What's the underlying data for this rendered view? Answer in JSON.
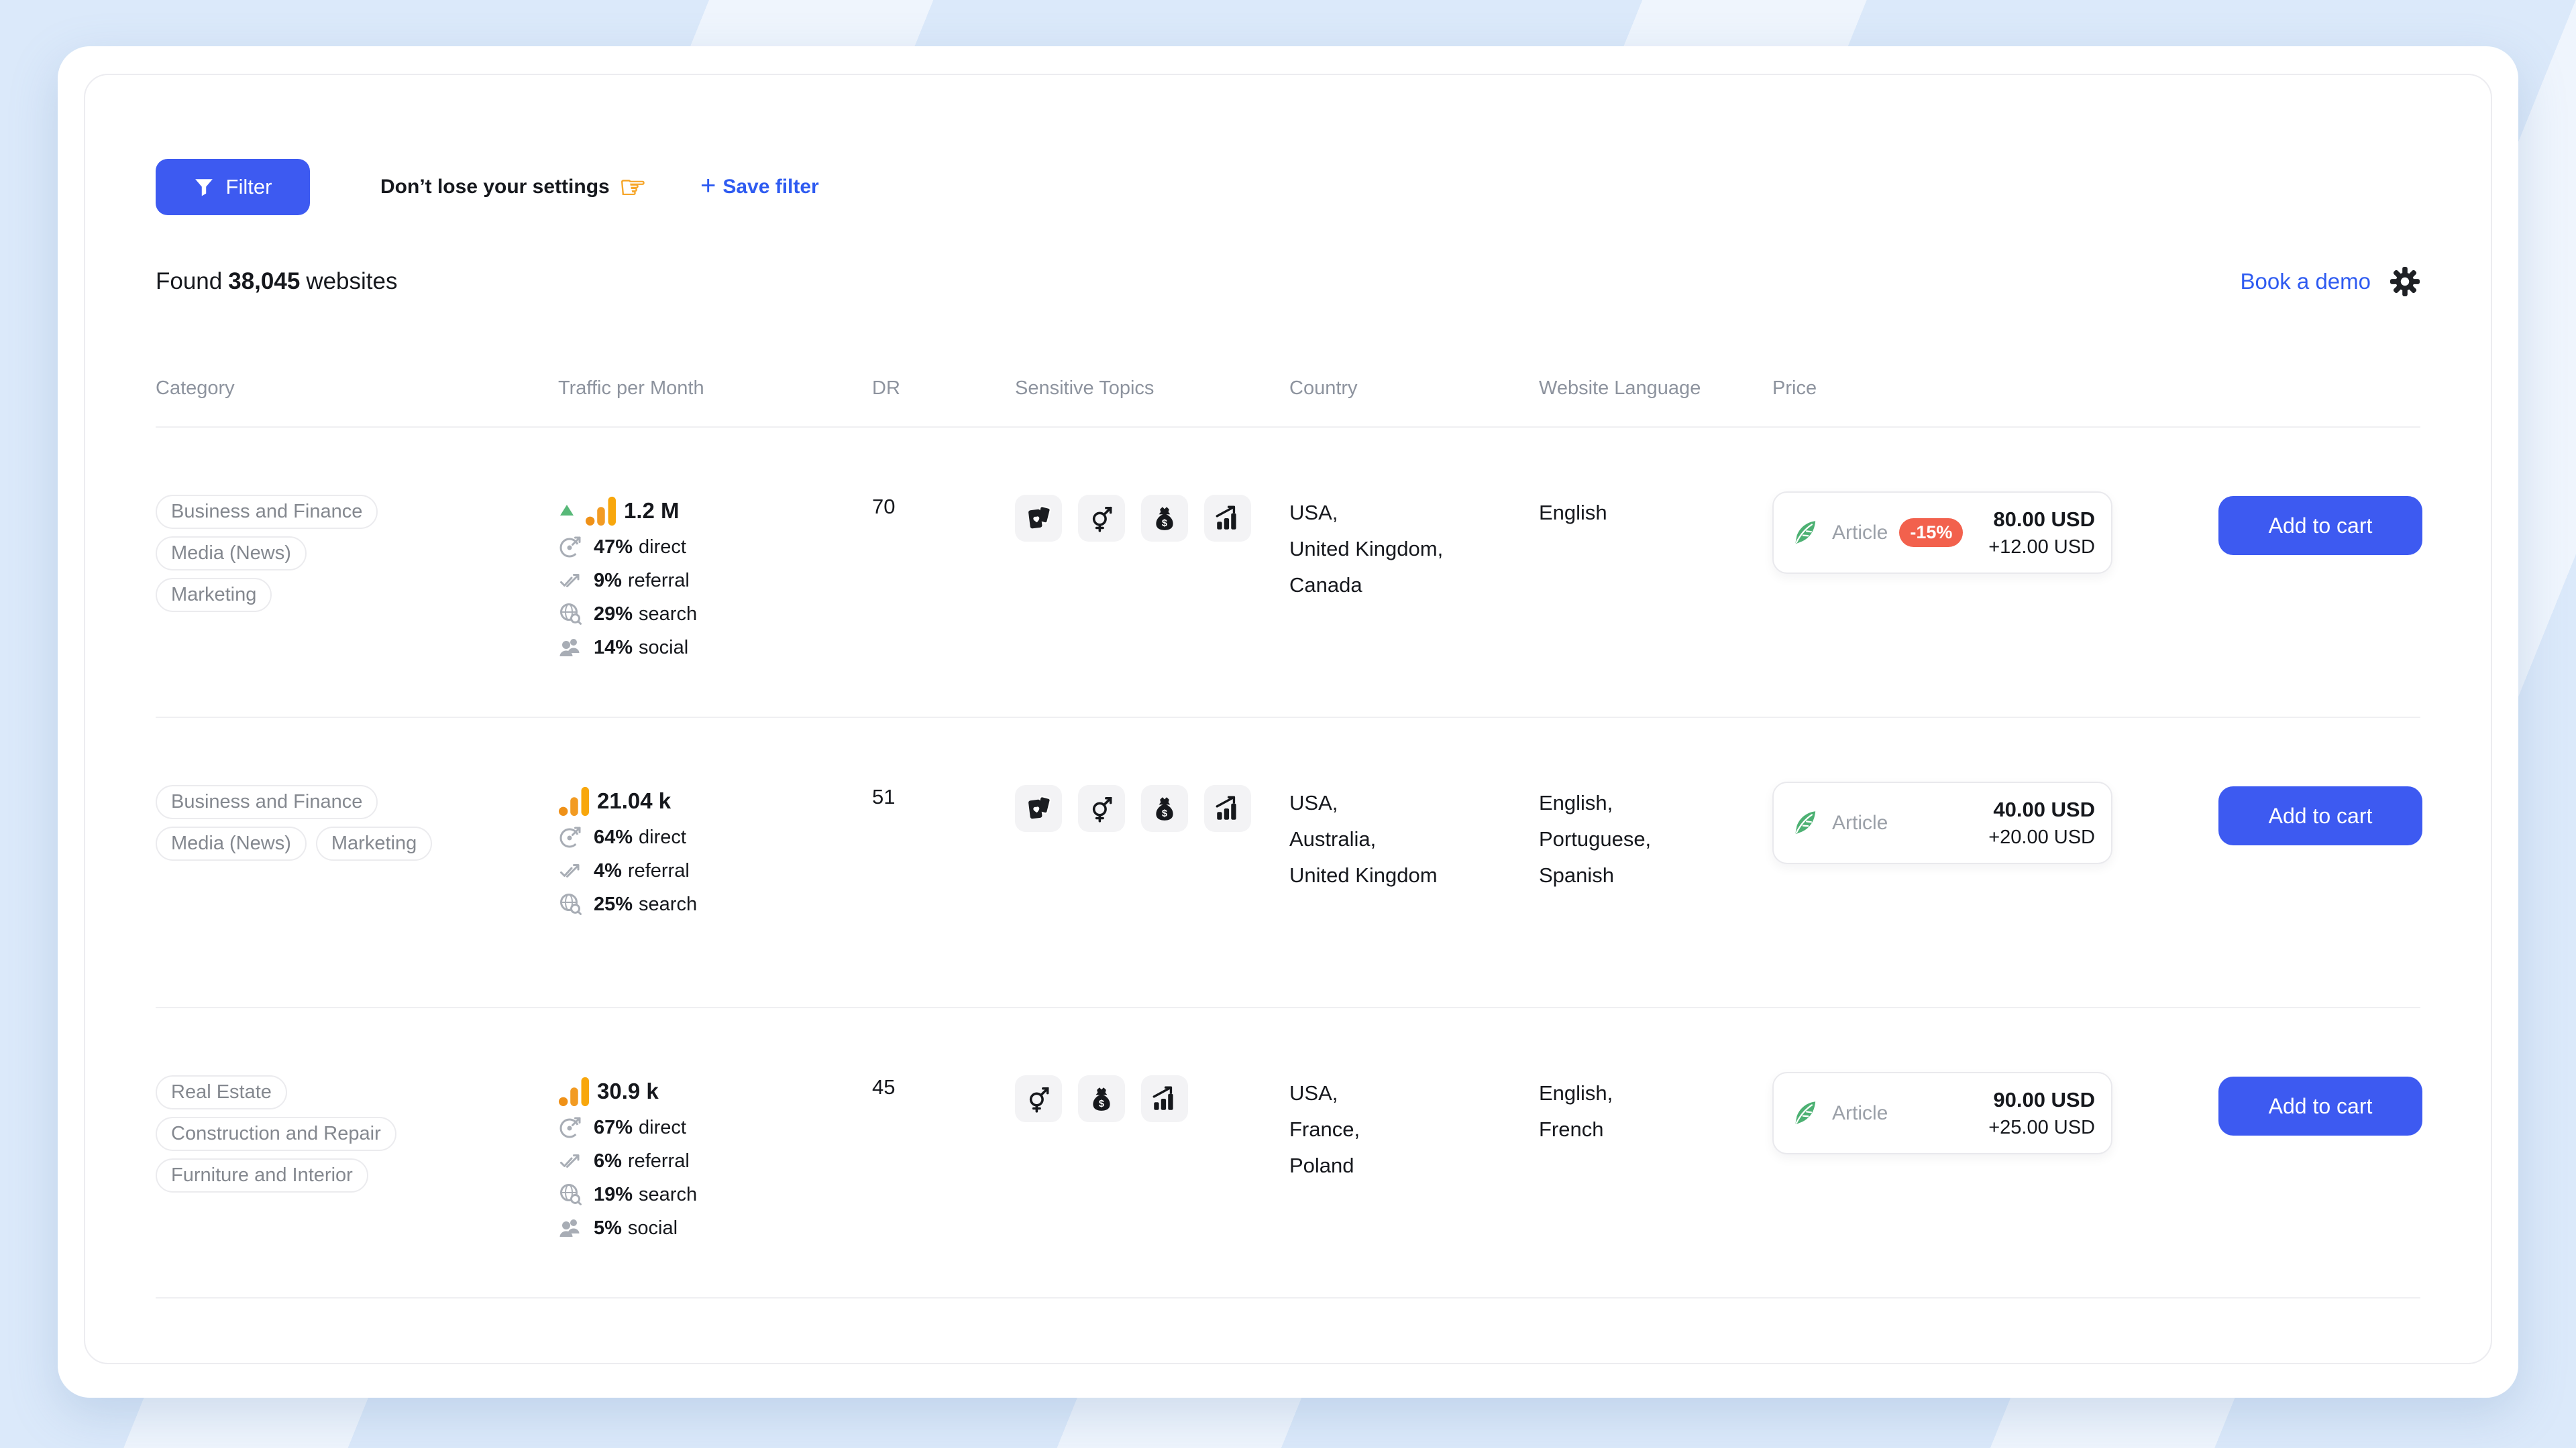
{
  "toolbar": {
    "filter_label": "Filter",
    "filter_icon": "funnel-icon",
    "hint_text": "Don’t lose your settings",
    "hint_icon": "pointing-hand-icon",
    "save_filter_label": "Save filter",
    "save_filter_icon": "plus-icon"
  },
  "summary": {
    "prefix": "Found",
    "count": "38,045",
    "suffix": "websites"
  },
  "header_right": {
    "book_demo": "Book a demo",
    "settings_icon": "gear-icon"
  },
  "table": {
    "columns": [
      "Category",
      "Traffic per Month",
      "DR",
      "Sensitive Topics",
      "Country",
      "Website Language",
      "Price"
    ]
  },
  "colors": {
    "accent_blue": "#3d5af1",
    "link_blue": "#2e5bf1",
    "discount_red": "#f2614d",
    "feather_green": "#4db173",
    "analytics_orange": "#f5a21b",
    "trend_green": "#57b878",
    "background_blue": "#dbe9fa"
  },
  "rows": [
    {
      "category_lines": [
        [
          "Business and Finance"
        ],
        [
          "Media (News)"
        ],
        [
          "Marketing"
        ]
      ],
      "traffic": {
        "total": "1.2 M",
        "trend_up": true,
        "total_icon": "analytics-bars-icon",
        "sources": [
          {
            "icon": "direct-icon",
            "value": "47%",
            "label": "direct"
          },
          {
            "icon": "referral-icon",
            "value": "9%",
            "label": "referral"
          },
          {
            "icon": "search-icon",
            "value": "29%",
            "label": "search"
          },
          {
            "icon": "social-icon",
            "value": "14%",
            "label": "social"
          }
        ]
      },
      "dr": "70",
      "sensitive_topic_icons": [
        "gambling-cards-icon",
        "adult-gender-icon",
        "loans-moneybag-icon",
        "trading-chart-icon"
      ],
      "countries": [
        "USA,",
        "United Kingdom,",
        "Canada"
      ],
      "languages": [
        "English"
      ],
      "price": {
        "feather_icon": "article-feather-icon",
        "content_type": "Article",
        "discount_badge": "-15%",
        "amount": "80.00 USD",
        "extra": "+12.00 USD"
      },
      "add_to_cart_label": "Add to cart"
    },
    {
      "category_lines": [
        [
          "Business and Finance"
        ],
        [
          "Media (News)",
          "Marketing"
        ]
      ],
      "traffic": {
        "total": "21.04 k",
        "trend_up": false,
        "total_icon": "analytics-bars-icon",
        "sources": [
          {
            "icon": "direct-icon",
            "value": "64%",
            "label": "direct"
          },
          {
            "icon": "referral-icon",
            "value": "4%",
            "label": "referral"
          },
          {
            "icon": "search-icon",
            "value": "25%",
            "label": "search"
          }
        ]
      },
      "dr": "51",
      "sensitive_topic_icons": [
        "gambling-cards-icon",
        "adult-gender-icon",
        "loans-moneybag-icon",
        "trading-chart-icon"
      ],
      "countries": [
        "USA,",
        "Australia,",
        "United Kingdom"
      ],
      "languages": [
        "English,",
        "Portuguese,",
        "Spanish"
      ],
      "price": {
        "feather_icon": "article-feather-icon",
        "content_type": "Article",
        "discount_badge": null,
        "amount": "40.00 USD",
        "extra": "+20.00 USD"
      },
      "add_to_cart_label": "Add to cart"
    },
    {
      "category_lines": [
        [
          "Real Estate"
        ],
        [
          "Construction and Repair"
        ],
        [
          "Furniture and Interior"
        ]
      ],
      "traffic": {
        "total": "30.9 k",
        "trend_up": false,
        "total_icon": "analytics-bars-icon",
        "sources": [
          {
            "icon": "direct-icon",
            "value": "67%",
            "label": "direct"
          },
          {
            "icon": "referral-icon",
            "value": "6%",
            "label": "referral"
          },
          {
            "icon": "search-icon",
            "value": "19%",
            "label": "search"
          },
          {
            "icon": "social-icon",
            "value": "5%",
            "label": "social"
          }
        ]
      },
      "dr": "45",
      "sensitive_topic_icons": [
        "adult-gender-icon",
        "loans-moneybag-icon",
        "trading-chart-icon"
      ],
      "countries": [
        "USA,",
        "France,",
        "Poland"
      ],
      "languages": [
        "English,",
        "French"
      ],
      "price": {
        "feather_icon": "article-feather-icon",
        "content_type": "Article",
        "discount_badge": null,
        "amount": "90.00 USD",
        "extra": "+25.00 USD"
      },
      "add_to_cart_label": "Add to cart"
    }
  ]
}
